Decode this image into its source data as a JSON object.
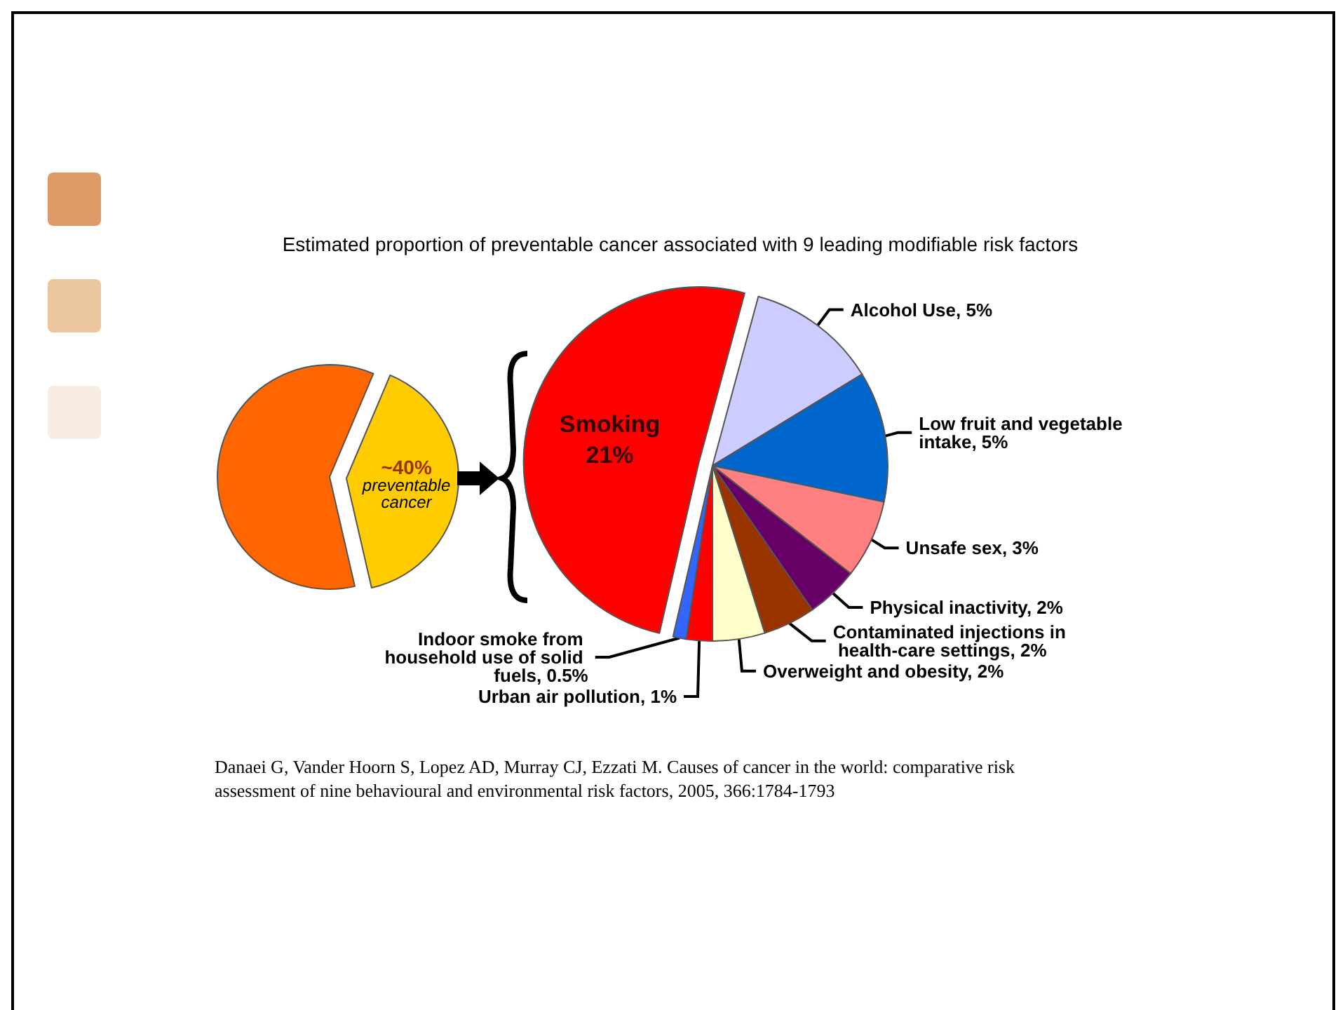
{
  "chart_data": [
    {
      "type": "pie",
      "categories": [
        "preventable cancer",
        null
      ],
      "values": [
        40,
        60
      ],
      "colors": [
        "#ffcc00",
        "#ff6600"
      ],
      "value_labels": [
        "~40%",
        null
      ]
    },
    {
      "type": "pie",
      "title": "Estimated proportion of preventable cancer associated with 9 leading modifiable risk factors",
      "categories": [
        "Smoking",
        "Alcohol Use",
        "Low fruit and vegetable intake",
        "Unsafe sex",
        "Physical inactivity",
        "Contaminated injections in health-care settings",
        "Overweight and obesity",
        "Urban air pollution",
        "Indoor smoke from household use of solid fuels"
      ],
      "values": [
        21,
        5,
        5,
        3,
        2,
        2,
        2,
        1,
        0.5
      ],
      "colors": [
        "#ff0000",
        "#ccccff",
        "#0066cc",
        "#ff8080",
        "#660066",
        "#993300",
        "#ffffcc",
        "#ff0000",
        "#3366ff"
      ],
      "value_labels": [
        "21%",
        "5%",
        "5%",
        "3%",
        "2%",
        "2%",
        "2%",
        "1%",
        "0.5%"
      ],
      "annotations": [
        "Danaei G, Vander Hoorn S, Lopez AD, Murray CJ, Ezzati M. Causes of cancer in the world: comparative risk assessment of nine behavioural and environmental risk factors, 2005, 366:1784-1793"
      ]
    }
  ]
}
